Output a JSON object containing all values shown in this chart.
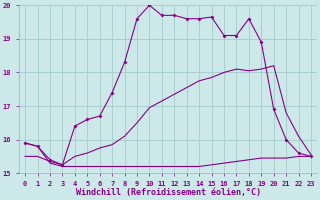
{
  "xlabel": "Windchill (Refroidissement éolien,°C)",
  "bg_color": "#cce8e8",
  "grid_color": "#aacfcf",
  "line_color": "#880088",
  "xlim": [
    -0.5,
    23.5
  ],
  "ylim": [
    15,
    20
  ],
  "xticks": [
    0,
    1,
    2,
    3,
    4,
    5,
    6,
    7,
    8,
    9,
    10,
    11,
    12,
    13,
    14,
    15,
    16,
    17,
    18,
    19,
    20,
    21,
    22,
    23
  ],
  "yticks": [
    15,
    16,
    17,
    18,
    19,
    20
  ],
  "line1_x": [
    0,
    1,
    2,
    3,
    4,
    5,
    6,
    7,
    8,
    9,
    10,
    11,
    12,
    13,
    14,
    15,
    16,
    17,
    18,
    19,
    20,
    21,
    22,
    23
  ],
  "line1_y": [
    15.9,
    15.8,
    15.4,
    15.25,
    16.4,
    16.6,
    16.7,
    17.4,
    18.3,
    19.6,
    20.0,
    19.7,
    19.7,
    19.6,
    19.6,
    19.65,
    19.1,
    19.1,
    19.6,
    18.9,
    16.9,
    16.0,
    15.6,
    15.5
  ],
  "line2_x": [
    0,
    1,
    2,
    3,
    4,
    5,
    6,
    7,
    8,
    9,
    10,
    11,
    12,
    13,
    14,
    15,
    16,
    17,
    18,
    19,
    20,
    21,
    22,
    23
  ],
  "line2_y": [
    15.5,
    15.5,
    15.35,
    15.25,
    15.5,
    15.6,
    15.75,
    15.85,
    16.1,
    16.5,
    16.95,
    17.15,
    17.35,
    17.55,
    17.75,
    17.85,
    18.0,
    18.1,
    18.05,
    18.1,
    18.2,
    16.8,
    16.1,
    15.55
  ],
  "line3_x": [
    0,
    1,
    2,
    3,
    4,
    5,
    6,
    7,
    8,
    9,
    10,
    11,
    12,
    13,
    14,
    15,
    16,
    17,
    18,
    19,
    20,
    21,
    22,
    23
  ],
  "line3_y": [
    15.9,
    15.8,
    15.3,
    15.2,
    15.2,
    15.2,
    15.2,
    15.2,
    15.2,
    15.2,
    15.2,
    15.2,
    15.2,
    15.2,
    15.2,
    15.25,
    15.3,
    15.35,
    15.4,
    15.45,
    15.45,
    15.45,
    15.5,
    15.5
  ],
  "tick_fontsize": 5.0,
  "xlabel_fontsize": 6.0
}
